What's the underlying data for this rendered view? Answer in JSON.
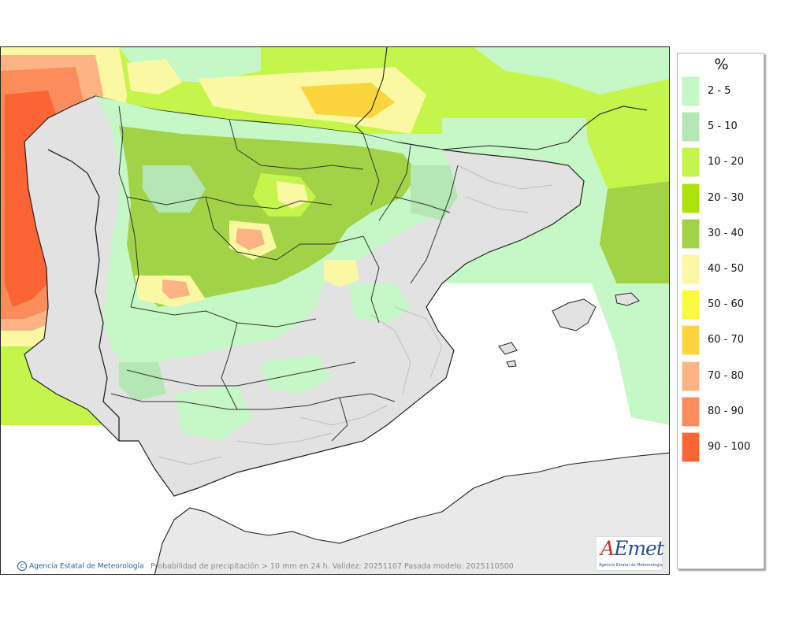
{
  "map": {
    "title": "Probabilidad de precipitación > 10 mm en 24 h. Validez: 20251107 Pasada modelo: 2025110500",
    "credit": "Agencia Estatal de Meteorología",
    "credit_symbol": "C",
    "logo": {
      "word_a": "A",
      "word_e": "E",
      "word_rest": "met",
      "subtitle": "Agencia Estatal de Meteorología"
    },
    "colors": {
      "sea": "#ffffff",
      "unshaded_land": "#e2e2e2",
      "borders": "#222222"
    }
  },
  "legend": {
    "unit": "%",
    "classes": [
      {
        "label": "2 - 5",
        "color": "#c6f7c6"
      },
      {
        "label": "5 - 10",
        "color": "#b4e7b4"
      },
      {
        "label": "10 - 20",
        "color": "#c5f54a"
      },
      {
        "label": "20 - 30",
        "color": "#aee20f"
      },
      {
        "label": "30 - 40",
        "color": "#a2d246"
      },
      {
        "label": "40 - 50",
        "color": "#fbf8a4"
      },
      {
        "label": "50 - 60",
        "color": "#fafa3c"
      },
      {
        "label": "60 - 70",
        "color": "#fcd43c"
      },
      {
        "label": "70 - 80",
        "color": "#fcb484"
      },
      {
        "label": "80 - 90",
        "color": "#fc8c5c"
      },
      {
        "label": "90 - 100",
        "color": "#fc6434"
      }
    ]
  }
}
